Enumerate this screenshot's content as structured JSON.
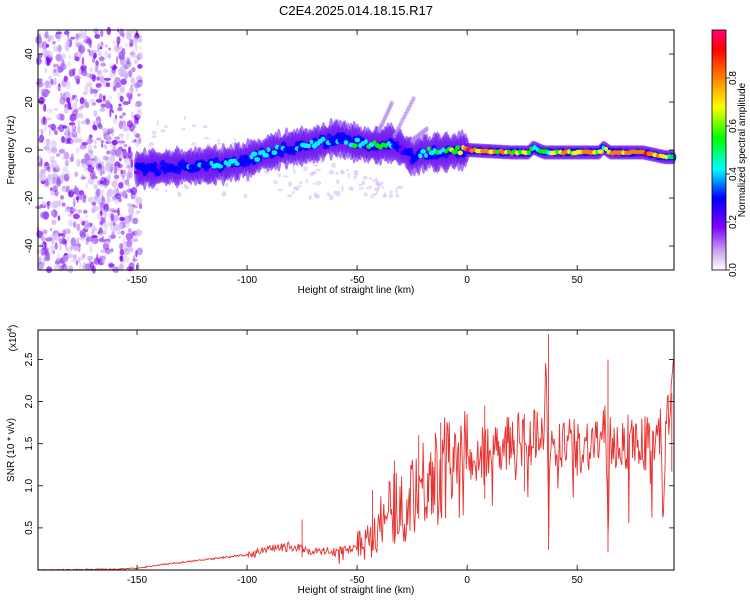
{
  "title": "C2E4.2025.014.18.15.R17",
  "chart_data": [
    {
      "type": "heatmap",
      "xlabel": "Height of straight line (km)",
      "ylabel": "Frequency (Hz)",
      "xlim": [
        -195,
        94
      ],
      "ylim": [
        -50,
        50
      ],
      "xticks": [
        -150,
        -100,
        -50,
        0,
        50
      ],
      "yticks": [
        -40,
        -20,
        0,
        20,
        40
      ],
      "grid": false,
      "colorbar": {
        "label": "Normalized spectral amplitude",
        "range": [
          0,
          1
        ],
        "ticks": [
          0.0,
          0.2,
          0.4,
          0.6,
          0.8
        ],
        "colormap": [
          "#ffffff",
          "#c8a2f0",
          "#7f00ff",
          "#0000ff",
          "#00ffff",
          "#00ff00",
          "#ffff00",
          "#ff8000",
          "#ff0000",
          "#ff0080"
        ]
      },
      "noise_region_x": [
        -195,
        -150
      ],
      "ridge": {
        "x": [
          -150,
          -130,
          -110,
          -100,
          -90,
          -80,
          -70,
          -60,
          -55,
          -50,
          -45,
          -40,
          -35,
          -30,
          -25,
          -20,
          -10,
          0,
          20,
          28,
          30,
          35,
          50,
          60,
          62,
          65,
          80,
          90,
          94
        ],
        "freq": [
          -8,
          -7,
          -6,
          -4,
          -1,
          1,
          2,
          5,
          4,
          3,
          2,
          2,
          3,
          1,
          -3,
          -1,
          -1,
          0,
          -1,
          -1,
          1,
          -1,
          -1,
          -1,
          1,
          -1,
          -1,
          -3,
          -3
        ],
        "amplitude": [
          0.35,
          0.4,
          0.45,
          0.5,
          0.5,
          0.45,
          0.55,
          0.45,
          0.5,
          0.6,
          0.55,
          0.6,
          0.5,
          0.3,
          0.35,
          0.5,
          0.6,
          0.95,
          0.75,
          0.7,
          0.5,
          0.7,
          0.8,
          0.85,
          0.5,
          0.9,
          0.9,
          0.8,
          0.6
        ]
      },
      "streaks": [
        {
          "x": [
            -40,
            -34
          ],
          "freq": [
            8,
            20
          ]
        },
        {
          "x": [
            -33,
            -24
          ],
          "freq": [
            6,
            22
          ]
        },
        {
          "x": [
            -25,
            -18
          ],
          "freq": [
            4,
            9
          ]
        }
      ]
    },
    {
      "type": "line",
      "xlabel": "Height of straight line (km)",
      "ylabel": "SNR (10 * v/v)",
      "y_multiplier": "(x10",
      "y_multiplier_exponent": "4",
      "y_multiplier_close": ")",
      "xlim": [
        -195,
        94
      ],
      "ylim": [
        0,
        2.85
      ],
      "xticks": [
        -150,
        -100,
        -50,
        0,
        50
      ],
      "yticks": [
        0.5,
        1.0,
        1.5,
        2.0,
        2.5
      ],
      "grid": false,
      "color": "#e8322f",
      "series": [
        {
          "x": [
            -195,
            -160,
            -150,
            -140,
            -120,
            -100,
            -90,
            -80,
            -70,
            -60,
            -55,
            -50,
            -45,
            -40,
            -35,
            -30,
            -25,
            -20,
            -15,
            -10,
            -5,
            0,
            5,
            10,
            15,
            20,
            25,
            30,
            33,
            35,
            36,
            37,
            38,
            39,
            40,
            42,
            45,
            50,
            55,
            60,
            63,
            64,
            65,
            66,
            70,
            75,
            80,
            85,
            88,
            89,
            90,
            92,
            94
          ],
          "values": [
            0.0,
            0.01,
            0.02,
            0.06,
            0.12,
            0.18,
            0.24,
            0.28,
            0.22,
            0.22,
            0.24,
            0.28,
            0.38,
            0.55,
            0.7,
            0.8,
            0.95,
            1.05,
            1.1,
            1.2,
            1.25,
            1.25,
            1.35,
            1.45,
            1.5,
            1.55,
            1.55,
            1.6,
            1.75,
            1.6,
            2.8,
            0.4,
            1.7,
            1.55,
            1.55,
            1.55,
            1.5,
            1.45,
            1.5,
            1.55,
            1.65,
            0.35,
            1.55,
            1.5,
            1.5,
            1.55,
            1.5,
            1.55,
            1.6,
            0.55,
            1.65,
            1.8,
            2.1
          ],
          "spikes": [
            {
              "x": -75,
              "y": 0.6
            },
            {
              "x": -43,
              "y": 0.95
            },
            {
              "x": -33,
              "y": 1.3
            },
            {
              "x": -22,
              "y": 1.6
            },
            {
              "x": -12,
              "y": 1.75
            },
            {
              "x": 8,
              "y": 1.95
            },
            {
              "x": 26,
              "y": 1.85
            },
            {
              "x": 37,
              "y": 2.8
            },
            {
              "x": 64,
              "y": 2.5
            },
            {
              "x": 93,
              "y": 2.1
            }
          ]
        }
      ]
    }
  ]
}
